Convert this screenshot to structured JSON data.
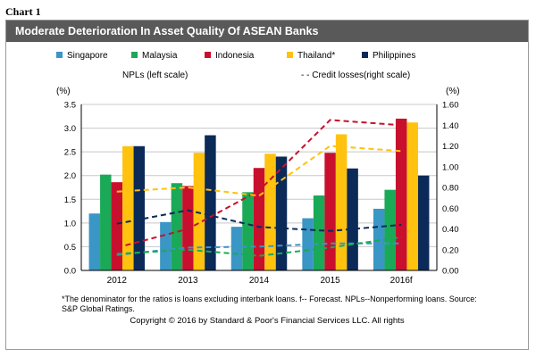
{
  "header": {
    "chart_label": "Chart 1",
    "title": "Moderate Deterioration In Asset Quality Of ASEAN Banks"
  },
  "colors": {
    "Singapore": "#3a96c4",
    "Malaysia": "#1aa957",
    "Indonesia": "#c8102e",
    "Thailand": "#ffc20e",
    "Philippines": "#0b2a58",
    "gridline": "#c8c8c8",
    "title_bar": "#595959"
  },
  "chart_data": {
    "type": "bar",
    "categories": [
      "2012",
      "2013",
      "2014",
      "2015",
      "2016f"
    ],
    "series": [
      {
        "name": "Singapore",
        "values": [
          1.2,
          1.02,
          0.92,
          1.1,
          1.3
        ]
      },
      {
        "name": "Malaysia",
        "values": [
          2.02,
          1.84,
          1.65,
          1.58,
          1.7
        ]
      },
      {
        "name": "Indonesia",
        "values": [
          1.86,
          1.78,
          2.16,
          2.48,
          3.2
        ]
      },
      {
        "name": "Thailand",
        "values": [
          2.62,
          2.48,
          2.46,
          2.87,
          3.12
        ]
      },
      {
        "name": "Philippines",
        "values": [
          2.62,
          2.85,
          2.4,
          2.15,
          2.0
        ]
      }
    ],
    "credit_losses": [
      {
        "name": "Singapore",
        "values": [
          0.15,
          0.22,
          0.23,
          0.26,
          0.26
        ]
      },
      {
        "name": "Malaysia",
        "values": [
          0.16,
          0.2,
          0.14,
          0.22,
          0.32
        ]
      },
      {
        "name": "Indonesia",
        "values": [
          0.22,
          0.4,
          0.77,
          1.45,
          1.4
        ]
      },
      {
        "name": "Thailand",
        "values": [
          0.76,
          0.8,
          0.72,
          1.2,
          1.15
        ]
      },
      {
        "name": "Philippines",
        "values": [
          0.45,
          0.58,
          0.42,
          0.38,
          0.44
        ]
      }
    ],
    "legend_entries": [
      "Singapore",
      "Malaysia",
      "Indonesia",
      "Thailand*",
      "Philippines"
    ],
    "left_axis_label": "NPLs (left scale)",
    "right_axis_label": "- - Credit losses(right scale)",
    "left_unit": "(%)",
    "right_unit": "(%)",
    "left_ticks": [
      "0.0",
      "0.5",
      "1.0",
      "1.5",
      "2.0",
      "2.5",
      "3.0",
      "3.5"
    ],
    "right_ticks": [
      "0.00",
      "0.20",
      "0.40",
      "0.60",
      "0.80",
      "1.00",
      "1.20",
      "1.40",
      "1.60"
    ],
    "ylim_left": [
      0,
      3.5
    ],
    "ylim_right": [
      0,
      1.6
    ],
    "grid": true,
    "legend_position": "top"
  },
  "footnote": "*The denominator for the ratios is loans excluding interbank loans. f-- Forecast. NPLs--Nonperforming loans. Source: S&P Global Ratings.",
  "copyright": "Copyright © 2016 by Standard & Poor's Financial Services LLC. All rights"
}
